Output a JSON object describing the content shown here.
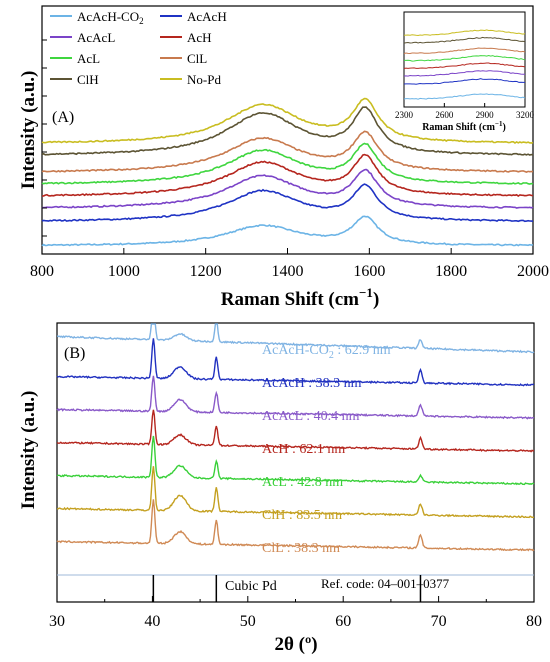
{
  "chart_data": [
    {
      "panel_label": "(A)",
      "type": "line",
      "xlabel": "Raman Shift (cm",
      "xlabel_sup": "−1",
      "xlabel_tail": ")",
      "ylabel": "Intensity (a.u.)",
      "xlim": [
        800,
        2000
      ],
      "xticks": [
        "800",
        "1000",
        "1200",
        "1400",
        "1600",
        "1800",
        "2000"
      ],
      "peaks": {
        "D_band": 1340,
        "G_band": 1590
      },
      "legend": [
        {
          "label": "AcAcH-CO",
          "sub": "2",
          "color": "#6cb4e6"
        },
        {
          "label": "AcAcH",
          "color": "#1f33c4"
        },
        {
          "label": "AcAcL",
          "color": "#7b44c8"
        },
        {
          "label": "AcH",
          "color": "#b5261e"
        },
        {
          "label": "AcL",
          "color": "#3fd63f"
        },
        {
          "label": "ClL",
          "color": "#c87a4e"
        },
        {
          "label": "ClH",
          "color": "#5c5434"
        },
        {
          "label": "No-Pd",
          "color": "#c9bd21"
        }
      ],
      "series": [
        {
          "name": "AcAcH-CO2",
          "color": "#6cb4e6",
          "offset": 0.0,
          "d_peak": 0.62,
          "g_peak": 0.82
        },
        {
          "name": "AcAcH",
          "color": "#1f33c4",
          "offset": 1.0,
          "d_peak": 0.95,
          "g_peak": 1.0
        },
        {
          "name": "AcAcL",
          "color": "#7b44c8",
          "offset": 1.55,
          "d_peak": 1.0,
          "g_peak": 1.05
        },
        {
          "name": "AcH",
          "color": "#b5261e",
          "offset": 2.05,
          "d_peak": 1.05,
          "g_peak": 1.12
        },
        {
          "name": "AcL",
          "color": "#3fd63f",
          "offset": 2.55,
          "d_peak": 1.05,
          "g_peak": 1.1
        },
        {
          "name": "ClL",
          "color": "#c87a4e",
          "offset": 3.05,
          "d_peak": 1.05,
          "g_peak": 1.1
        },
        {
          "name": "ClH",
          "color": "#5c5434",
          "offset": 3.75,
          "d_peak": 1.3,
          "g_peak": 1.3
        },
        {
          "name": "No-Pd",
          "color": "#c9bd21",
          "offset": 4.25,
          "d_peak": 1.2,
          "g_peak": 1.2
        }
      ],
      "inset": {
        "xlim": [
          2300,
          3200
        ],
        "xticks": [
          "2300",
          "2600",
          "2900",
          "3200"
        ],
        "xlabel": "Raman Shift (cm",
        "xlabel_sup": "−1",
        "xlabel_tail": ")"
      }
    },
    {
      "panel_label": "(B)",
      "type": "line",
      "xlabel": "2θ (º)",
      "ylabel": "Intensity (a.u.)",
      "xlim": [
        30,
        80
      ],
      "xticks": [
        "30",
        "40",
        "50",
        "60",
        "70",
        "80"
      ],
      "reference": {
        "label": "Cubic Pd",
        "code": "Ref. code: 04–001–0377",
        "lines": [
          40.1,
          46.7,
          68.1
        ]
      },
      "peak_positions": [
        40.1,
        42.9,
        46.7,
        68.1
      ],
      "series": [
        {
          "name": "AcAcH-CO",
          "sub": "2",
          "size_text": " : 62.9 nm",
          "color": "#7fb3e3",
          "offset": 7.0,
          "tilt": 1.1,
          "p40": 2.2,
          "p43": 0.3,
          "p47": 1.0,
          "p68": 0.4
        },
        {
          "name": "AcAcH",
          "size_text": " : 38.3 nm",
          "color": "#2131c0",
          "offset": 6.0,
          "tilt": 0.6,
          "p40": 1.8,
          "p43": 0.55,
          "p47": 1.0,
          "p68": 0.6
        },
        {
          "name": "AcAcL",
          "size_text": " : 40.4 nm",
          "color": "#8a5ac9",
          "offset": 5.0,
          "tilt": 0.6,
          "p40": 1.6,
          "p43": 0.55,
          "p47": 0.9,
          "p68": 0.5
        },
        {
          "name": "AcH",
          "size_text": " : 62.1 nm",
          "color": "#b5261e",
          "offset": 4.0,
          "tilt": 0.6,
          "p40": 1.6,
          "p43": 0.45,
          "p47": 0.9,
          "p68": 0.5
        },
        {
          "name": "AcL",
          "size_text": " : 42.8 nm",
          "color": "#39d039",
          "offset": 3.0,
          "tilt": 0.6,
          "p40": 1.9,
          "p43": 0.55,
          "p47": 0.8,
          "p68": 0.3
        },
        {
          "name": "ClH",
          "size_text": " : 83.5 nm",
          "color": "#c4a020",
          "offset": 2.0,
          "tilt": 0.6,
          "p40": 2.0,
          "p43": 0.7,
          "p47": 1.1,
          "p68": 0.5
        },
        {
          "name": "ClL",
          "size_text": " : 38.3 nm",
          "color": "#d08a55",
          "offset": 1.0,
          "tilt": 0.6,
          "p40": 2.0,
          "p43": 0.55,
          "p47": 1.1,
          "p68": 0.6
        }
      ]
    }
  ]
}
